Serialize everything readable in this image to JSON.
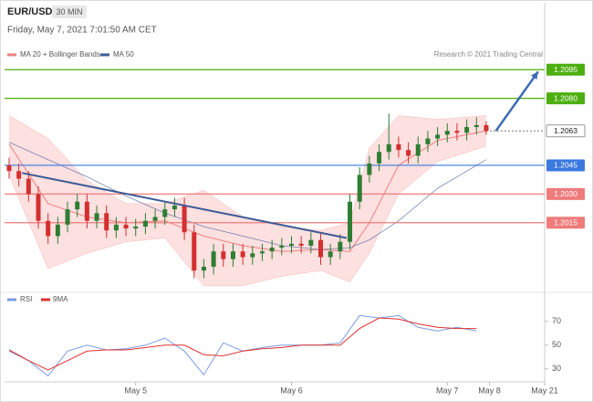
{
  "header": {
    "symbol": "EUR/USD",
    "timeframe": "30 MIN",
    "timestamp": "Friday, May 7, 2021 7:01:50 AM CET",
    "credit": "Research © 2021 Trading Central"
  },
  "chart_data": [
    {
      "type": "candlestick",
      "x": [
        -39,
        -36,
        -33,
        -30,
        -27,
        -24,
        -21,
        -18,
        -15,
        -12,
        -9,
        -6,
        -3,
        0,
        3,
        6,
        9,
        12,
        15,
        18,
        21,
        24,
        27,
        30,
        33,
        36,
        39,
        42,
        45,
        48,
        51,
        54,
        57,
        60,
        63,
        66,
        69,
        72,
        75,
        78,
        81,
        84,
        87,
        90,
        93,
        96,
        99,
        102,
        105,
        108
      ],
      "open": [
        1.2045,
        1.2042,
        1.2038,
        1.203,
        1.2016,
        1.2008,
        1.2014,
        1.2022,
        1.2026,
        1.2016,
        1.202,
        1.2011,
        1.2014,
        1.2012,
        1.2013,
        1.2016,
        1.2018,
        1.2022,
        1.2024,
        1.201,
        1.199,
        1.1992,
        1.2,
        1.1996,
        1.2,
        1.1997,
        1.1999,
        1.2,
        1.2002,
        1.2003,
        1.2004,
        1.2003,
        1.2006,
        1.1997,
        1.2,
        1.2005,
        1.2026,
        1.204,
        1.2046,
        1.2052,
        1.2056,
        1.2053,
        1.205,
        1.2056,
        1.2059,
        1.2061,
        1.2063,
        1.2062,
        1.2065,
        1.2066
      ],
      "high": [
        1.2049,
        1.2046,
        1.2042,
        1.2034,
        1.202,
        1.2018,
        1.2026,
        1.203,
        1.203,
        1.2024,
        1.2024,
        1.2018,
        1.2018,
        1.2017,
        1.202,
        1.2022,
        1.2026,
        1.2028,
        1.2028,
        1.2014,
        1.1996,
        1.2004,
        1.2004,
        1.2004,
        1.2004,
        1.2003,
        1.2004,
        1.2006,
        1.2007,
        1.2008,
        1.2008,
        1.201,
        1.201,
        1.2004,
        1.2009,
        1.203,
        1.2044,
        1.205,
        1.2056,
        1.2072,
        1.206,
        1.2057,
        1.206,
        1.2063,
        1.2065,
        1.2067,
        1.2067,
        1.2069,
        1.207,
        1.2068
      ],
      "low": [
        1.2038,
        1.2034,
        1.2026,
        1.2012,
        1.2004,
        1.2004,
        1.201,
        1.2018,
        1.2012,
        1.2012,
        1.2007,
        1.2007,
        1.2008,
        1.2008,
        1.2009,
        1.2012,
        1.2014,
        1.2018,
        1.2006,
        1.1986,
        1.1986,
        1.1988,
        1.1992,
        1.1992,
        1.1993,
        1.1993,
        1.1995,
        1.1996,
        1.1998,
        1.1999,
        1.1999,
        1.1999,
        1.1993,
        1.1993,
        1.1996,
        1.2001,
        1.2022,
        1.2036,
        1.2042,
        1.2048,
        1.2049,
        1.2046,
        1.2046,
        1.2052,
        1.2055,
        1.2057,
        1.2058,
        1.2058,
        1.2061,
        1.2061
      ],
      "close": [
        1.2042,
        1.2038,
        1.203,
        1.2016,
        1.2008,
        1.2014,
        1.2022,
        1.2026,
        1.2016,
        1.202,
        1.2011,
        1.2014,
        1.2012,
        1.2013,
        1.2016,
        1.2018,
        1.2022,
        1.2024,
        1.201,
        1.199,
        1.1992,
        1.2,
        1.1996,
        1.2,
        1.1997,
        1.1999,
        1.2,
        1.2002,
        1.2003,
        1.2004,
        1.2003,
        1.2006,
        1.1997,
        1.2,
        1.2005,
        1.2026,
        1.204,
        1.2046,
        1.2052,
        1.2056,
        1.2053,
        1.205,
        1.2056,
        1.2059,
        1.2061,
        1.2063,
        1.2062,
        1.2065,
        1.2066,
        1.2063
      ],
      "up_color": "#2e7d32",
      "down_color": "#d32f2f",
      "bands": {
        "name": "MA 20 + Bollinger Bands",
        "color": "#f08080",
        "fill": "#fde0e0",
        "x": [
          -39,
          -27,
          -15,
          -3,
          9,
          21,
          33,
          45,
          57,
          66,
          72,
          81,
          93,
          108
        ],
        "upper": [
          1.2071,
          1.2059,
          1.2037,
          1.2025,
          1.2025,
          1.2032,
          1.2018,
          1.2013,
          1.2011,
          1.2015,
          1.2054,
          1.2071,
          1.2069,
          1.2071
        ],
        "lower": [
          1.204,
          1.1991,
          1.1999,
          1.2005,
          1.2007,
          1.1982,
          1.1982,
          1.1987,
          1.199,
          1.1984,
          1.1999,
          1.203,
          1.2047,
          1.2055
        ],
        "ma": [
          1.2056,
          1.2025,
          1.2018,
          1.2015,
          1.2016,
          1.2008,
          1.2003,
          1.2,
          1.2001,
          1.2,
          1.2015,
          1.2045,
          1.2058,
          1.2063
        ]
      },
      "ma50": {
        "name": "MA 50",
        "color": "#3c5a96",
        "x": [
          -39,
          -27,
          -15,
          -3,
          9,
          21,
          33,
          45,
          57,
          66,
          72,
          81,
          93,
          108
        ],
        "values": [
          1.2057,
          1.2048,
          1.2039,
          1.2029,
          1.202,
          1.2013,
          1.2008,
          1.2003,
          1.2001,
          1.2002,
          1.2006,
          1.2016,
          1.2033,
          1.2048
        ]
      },
      "levels": [
        {
          "value": 1.2095,
          "label": "1.2095",
          "color": "#4caf0f",
          "style": "solid"
        },
        {
          "value": 1.208,
          "label": "1.2080",
          "color": "#4caf0f",
          "style": "solid"
        },
        {
          "value": 1.2063,
          "label": "1.2063",
          "color": "#777777",
          "style": "dotted"
        },
        {
          "value": 1.2045,
          "label": "1.2045",
          "color": "#3b78e0",
          "style": "solid"
        },
        {
          "value": 1.203,
          "label": "1.2030",
          "color": "#ef7b7b",
          "style": "solid"
        },
        {
          "value": 1.2015,
          "label": "1.2015",
          "color": "#ef7b7b",
          "style": "solid"
        }
      ],
      "trendline": {
        "x": [
          -35,
          65
        ],
        "y": [
          1.2041,
          1.2007
        ],
        "color": "#3c5a96"
      },
      "arrow": {
        "x": [
          111,
          124
        ],
        "y": [
          1.2063,
          1.2094
        ],
        "color": "#3c6cb4"
      },
      "xlim": [
        -40.4,
        126
      ],
      "ylim": [
        1.1981,
        1.2129
      ],
      "xticks": [
        {
          "value": 0,
          "label": "May 5"
        },
        {
          "value": 48,
          "label": "May 6"
        },
        {
          "value": 96,
          "label": "May 7"
        },
        {
          "value": 109,
          "label": "May 8"
        },
        {
          "value": 126,
          "label": "May 21"
        }
      ]
    },
    {
      "type": "line",
      "x": [
        -39,
        -33,
        -27,
        -21,
        -15,
        -9,
        -3,
        3,
        9,
        15,
        21,
        27,
        33,
        39,
        45,
        51,
        57,
        63,
        69,
        75,
        81,
        87,
        93,
        99,
        105
      ],
      "series": [
        {
          "name": "RSI",
          "color": "#7b9be0",
          "values": [
            45,
            37,
            24,
            45,
            50,
            46,
            47,
            50,
            56,
            45,
            25,
            52,
            45,
            48,
            50,
            50,
            50,
            52,
            75,
            73,
            75,
            65,
            62,
            65,
            62
          ]
        },
        {
          "name": "9MA",
          "color": "#e03030",
          "values": [
            46,
            37,
            29,
            37,
            45,
            46,
            46,
            48,
            50,
            50,
            42,
            41,
            45,
            47,
            48,
            50,
            50,
            50,
            64,
            73,
            72,
            68,
            65,
            64,
            64
          ]
        }
      ],
      "ylim": [
        19,
        83
      ],
      "yticks": [
        70,
        50,
        30
      ]
    }
  ]
}
